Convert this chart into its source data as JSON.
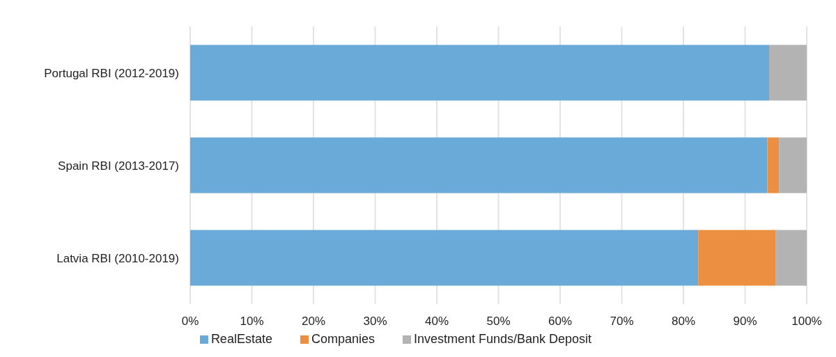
{
  "chart_data": {
    "type": "bar",
    "orientation": "horizontal",
    "stacked": true,
    "categories": [
      "Portugal RBI (2012-2019)",
      "Spain RBI (2013-2017)",
      "Latvia RBI (2010-2019)"
    ],
    "series": [
      {
        "name": "RealEstate",
        "color": "#6aaad9",
        "values": [
          93.9,
          93.6,
          82.4
        ]
      },
      {
        "name": "Companies",
        "color": "#ed8f40",
        "values": [
          0,
          1.9,
          12.6
        ]
      },
      {
        "name": "Investment Funds/Bank Deposit",
        "color": "#b3b3b3",
        "values": [
          6.1,
          4.5,
          5.0
        ]
      }
    ],
    "xlim": [
      0,
      100
    ],
    "xticks": [
      {
        "value": 0,
        "label": "0%"
      },
      {
        "value": 10,
        "label": "10%"
      },
      {
        "value": 20,
        "label": "20%"
      },
      {
        "value": 30,
        "label": "30%"
      },
      {
        "value": 40,
        "label": "40%"
      },
      {
        "value": 50,
        "label": "50%"
      },
      {
        "value": 60,
        "label": "60%"
      },
      {
        "value": 70,
        "label": "70%"
      },
      {
        "value": 80,
        "label": "80%"
      },
      {
        "value": 90,
        "label": "90%"
      },
      {
        "value": 100,
        "label": "100%"
      }
    ],
    "grid": "x",
    "legend": "bottom"
  }
}
